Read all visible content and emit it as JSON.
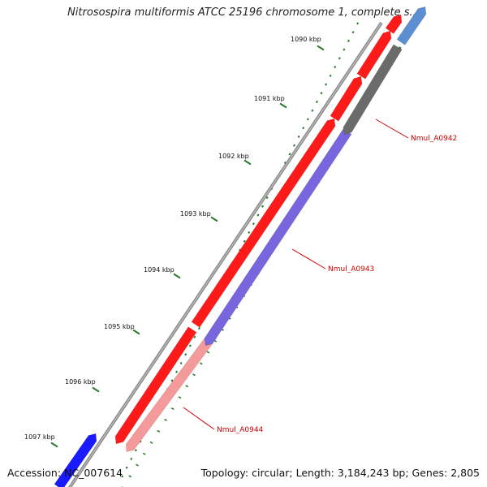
{
  "title": "Nitrosospira multiformis ATCC 25196 chromosome 1, complete s...",
  "footer": {
    "accession": "Accession: NC_007614",
    "summary": "Topology: circular; Length: 3,184,243 bp; Genes: 2,805"
  },
  "ruler": {
    "ticks": [
      "1090 kbp",
      "1091 kbp",
      "1092 kbp",
      "1093 kbp",
      "1094 kbp",
      "1095 kbp",
      "1096 kbp",
      "1097 kbp"
    ],
    "tick_color": "#2a7a2a"
  },
  "genes": [
    {
      "label": "Nmul_A0942",
      "track": "inner",
      "color": "#6b6b6b"
    },
    {
      "label": "Nmul_A0943",
      "track": "inner",
      "color": "#7766dd"
    },
    {
      "label": "Nmul_A0944",
      "track": "inner",
      "color": "#f49a9a"
    }
  ],
  "colors": {
    "backbone": "#8c8c8c",
    "forward_cds": "#ff1a1a",
    "reverse_blue": "#1a1aff",
    "steel_blue": "#5b8fd1",
    "label_line": "#cc0000"
  }
}
